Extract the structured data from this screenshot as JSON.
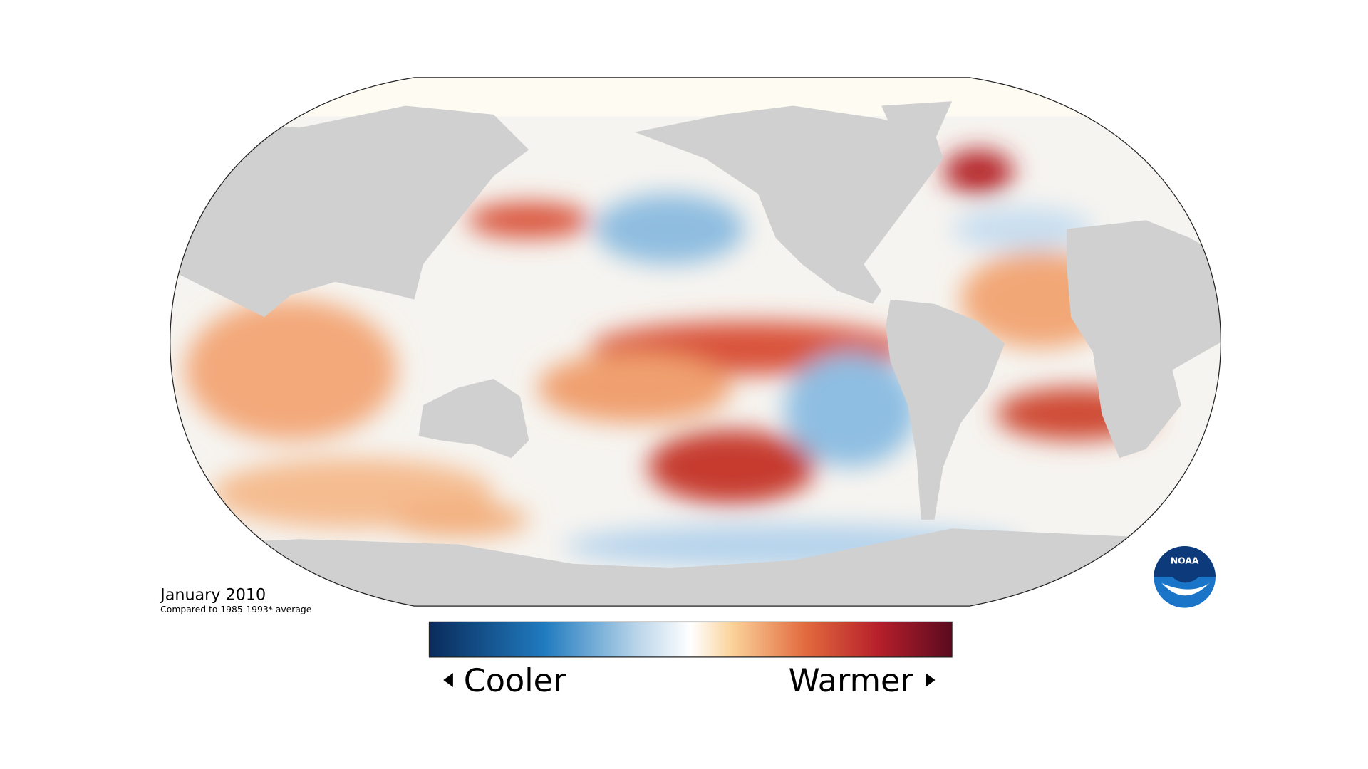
{
  "map": {
    "title": "January 2010",
    "subtitle": "Compared to 1985-1993* average"
  },
  "legend": {
    "low": "Cooler",
    "high": "Warmer"
  },
  "logo": "NOAA"
}
